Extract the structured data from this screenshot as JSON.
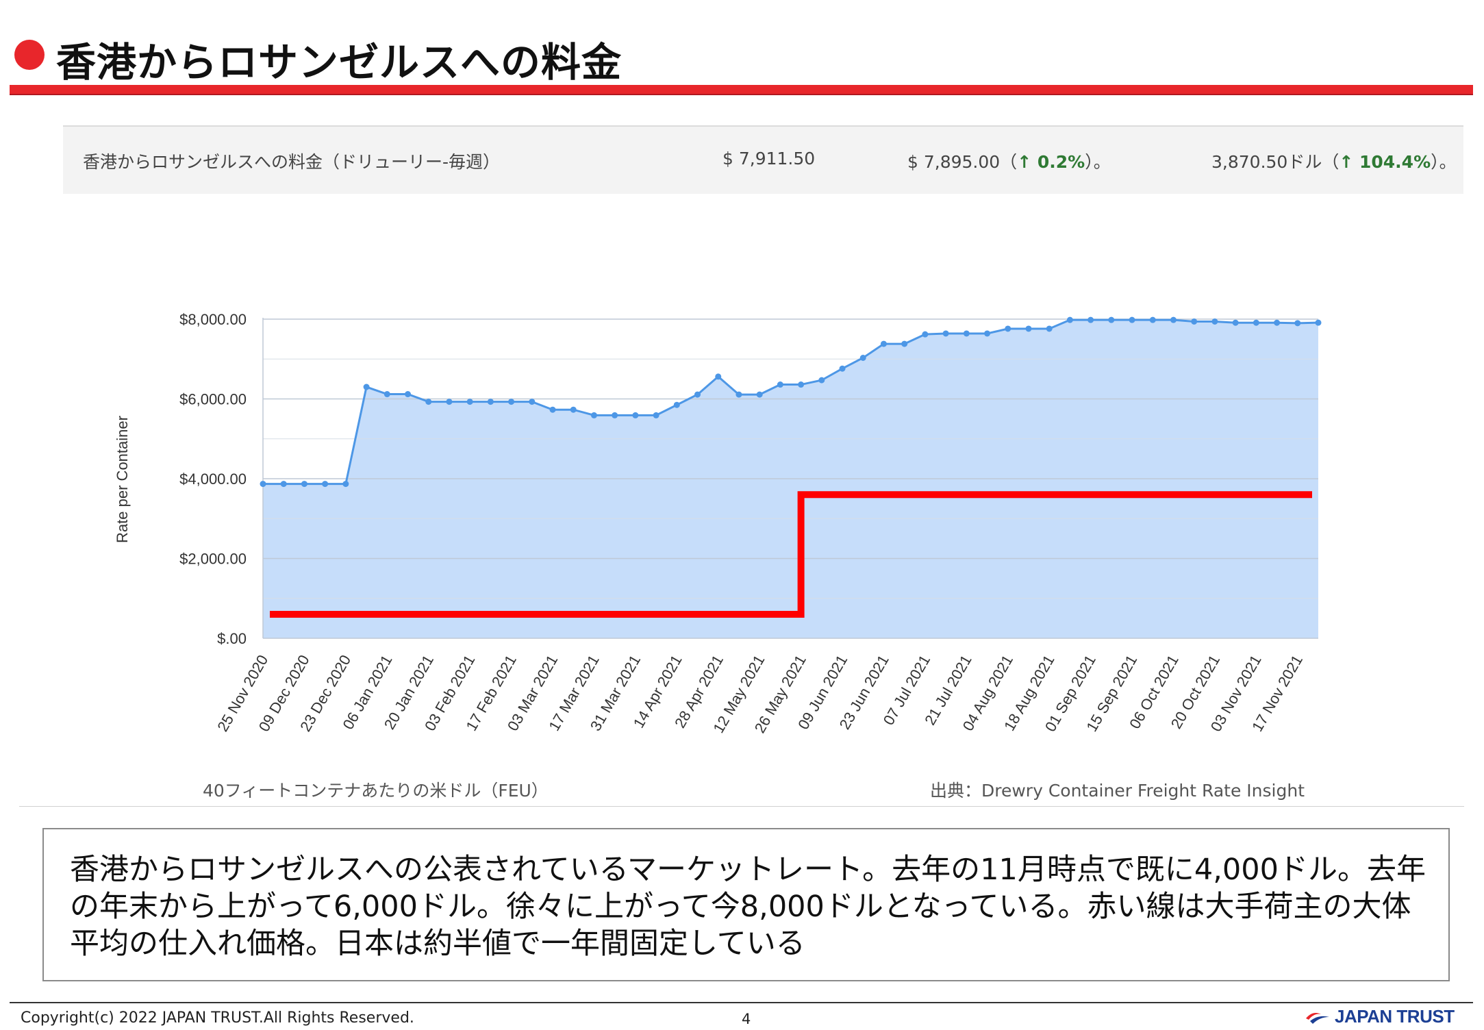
{
  "header": {
    "title": "香港からロサンゼルスへの料金"
  },
  "summary": {
    "label": "香港からロサンゼルスへの料金（ドリューリー-毎週）",
    "current": "$ 7,911.50",
    "prev_value": "$ 7,895.00（",
    "prev_change": "↑ 0.2%",
    "prev_tail": "）。",
    "year_value": "3,870.50ドル（",
    "year_change": "↑ 104.4%",
    "year_tail": "）。",
    "up_color": "#2f7a34"
  },
  "chart_data": {
    "type": "area",
    "ylabel": "Rate per Container",
    "ylim": [
      0,
      8000
    ],
    "y_ticks": [
      "$.00",
      "$2,000.00",
      "$4,000.00",
      "$6,000.00",
      "$8,000.00"
    ],
    "y_tick_values": [
      0,
      2000,
      4000,
      6000,
      8000
    ],
    "grid": true,
    "x_tick_labels": [
      "25 Nov 2020",
      "09 Dec 2020",
      "23 Dec 2020",
      "06 Jan 2021",
      "20 Jan 2021",
      "03 Feb 2021",
      "17 Feb 2021",
      "03 Mar 2021",
      "17 Mar 2021",
      "31 Mar 2021",
      "14 Apr 2021",
      "28 Apr 2021",
      "12 May 2021",
      "26 May 2021",
      "09 Jun 2021",
      "23 Jun 2021",
      "07 Jul 2021",
      "21 Jul 2021",
      "04 Aug 2021",
      "18 Aug 2021",
      "01 Sep 2021",
      "15 Sep 2021",
      "06 Oct 2021",
      "20 Oct 2021",
      "03 Nov 2021",
      "17 Nov 2021"
    ],
    "series": [
      {
        "values": [
          3870,
          3870,
          3870,
          3870,
          3870,
          6300,
          6120,
          6120,
          5930,
          5930,
          5930,
          5930,
          5930,
          5930,
          5730,
          5730,
          5590,
          5590,
          5590,
          5590,
          5850,
          6110,
          6560,
          6110,
          6110,
          6360,
          6360,
          6470,
          6760,
          7030,
          7380,
          7380,
          7620,
          7640,
          7640,
          7640,
          7760,
          7760,
          7760,
          7980,
          7980,
          7980,
          7980,
          7980,
          7980,
          7940,
          7940,
          7910,
          7910,
          7910,
          7900,
          7911.5
        ],
        "color": "#4d97e6",
        "fill": "#c6ddfa"
      }
    ],
    "reference_line": {
      "color": "#ff0000",
      "segments": [
        {
          "from_index": 0,
          "to_index": 26,
          "value": 600
        },
        {
          "from_index": 26,
          "to_index": 51,
          "value": 3600
        }
      ]
    }
  },
  "captions": {
    "unit": "40フィートコンテナあたりの米ドル（FEU）",
    "source": "出典：Drewry Container Freight Rate Insight"
  },
  "comment": {
    "text": "香港からロサンゼルスへの公表されているマーケットレート。去年の11月時点で既に4,000ドル。去年の年末から上がって6,000ドル。徐々に上がって今8,000ドルとなっている。赤い線は大手荷主の大体平均の仕入れ価格。日本は約半値で一年間固定している"
  },
  "footer": {
    "copyright": "Copyright(c) 2022 JAPAN TRUST.All Rights Reserved.",
    "page_number": "4",
    "logo_text": "JAPAN TRUST"
  },
  "colors": {
    "accent_red": "#e8262b",
    "logo_blue": "#1c3f94"
  }
}
